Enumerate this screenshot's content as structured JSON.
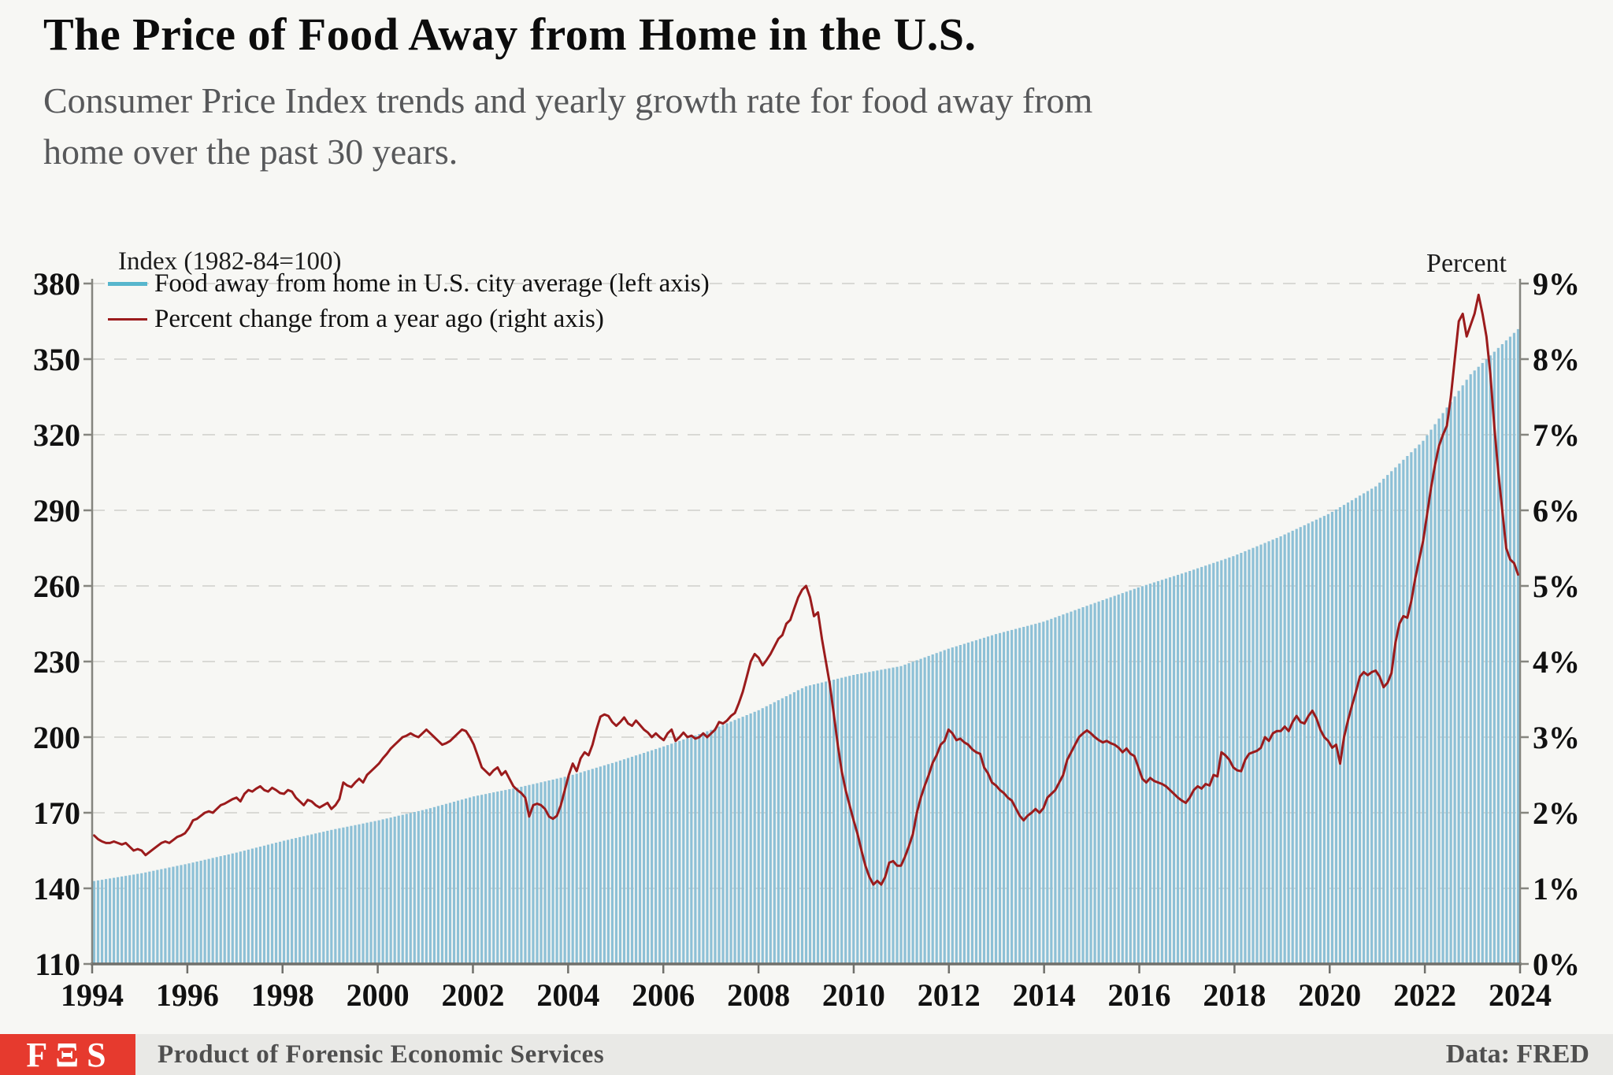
{
  "title": "The Price of Food Away from Home in the U.S.",
  "subtitle_line1": "Consumer Price Index trends and yearly growth rate for food away from",
  "subtitle_line2": "home over the past 30 years.",
  "axis_titles": {
    "left": "Index (1982-84=100)",
    "right": "Percent"
  },
  "legend": [
    {
      "label": "Food away from home in U.S. city average (left axis)",
      "color": "#57b6cd",
      "thickness": 5
    },
    {
      "label": "Percent change from a year ago (right axis)",
      "color": "#9b1b1c",
      "thickness": 3
    }
  ],
  "footer": {
    "logo": "FΞS",
    "product": "Product of Forensic Economic Services",
    "source": "Data: FRED"
  },
  "colors": {
    "background": "#f7f7f4",
    "bar": "#8dc0d6",
    "line": "#9b1b1c",
    "grid": "#d9d9d5",
    "axis": "#85857f",
    "baseline": "#70706b",
    "tick_text": "#111111"
  },
  "chart_data": {
    "type": "bar+line",
    "title": "The Price of Food Away from Home in the U.S.",
    "left_axis": {
      "label": "Index (1982-84=100)",
      "min": 110,
      "max": 380,
      "tick_step": 30,
      "ticks": [
        110,
        140,
        170,
        200,
        230,
        260,
        290,
        320,
        350,
        380
      ]
    },
    "right_axis": {
      "label": "Percent",
      "min": 0,
      "max": 9,
      "tick_step": 1,
      "ticks": [
        "0%",
        "1%",
        "2%",
        "3%",
        "4%",
        "5%",
        "6%",
        "7%",
        "8%",
        "9%"
      ]
    },
    "x_axis": {
      "start_year": 1994,
      "end_year": 2024,
      "tick_step": 2,
      "ticks": [
        "1994",
        "1996",
        "1998",
        "2000",
        "2002",
        "2004",
        "2006",
        "2008",
        "2010",
        "2012",
        "2014",
        "2016",
        "2018",
        "2020",
        "2022",
        "2024"
      ]
    },
    "grid": "horizontal-dashed",
    "legend_position": "top-left-inside",
    "bars": {
      "name": "Food away from home in U.S. city average",
      "axis": "left",
      "frequency": "monthly",
      "january_index_by_year": [
        142.9,
        146.0,
        149.9,
        154.2,
        158.9,
        163.2,
        167.0,
        171.4,
        176.5,
        180.3,
        184.6,
        190.2,
        196.3,
        202.9,
        210.7,
        220.2,
        224.7,
        228.2,
        235.1,
        240.9,
        245.8,
        252.7,
        259.4,
        265.4,
        271.8,
        279.7,
        288.5,
        299.5,
        317.6,
        344.0,
        361.9
      ]
    },
    "line": {
      "name": "Percent change from a year ago",
      "axis": "right",
      "frequency": "monthly",
      "start": "1994-01",
      "end": "2024-01",
      "values": [
        1.7,
        1.65,
        1.62,
        1.6,
        1.6,
        1.62,
        1.6,
        1.58,
        1.6,
        1.55,
        1.5,
        1.52,
        1.5,
        1.44,
        1.48,
        1.52,
        1.56,
        1.6,
        1.62,
        1.6,
        1.64,
        1.68,
        1.7,
        1.73,
        1.8,
        1.9,
        1.92,
        1.96,
        2.0,
        2.02,
        2.0,
        2.05,
        2.1,
        2.12,
        2.15,
        2.18,
        2.2,
        2.15,
        2.25,
        2.3,
        2.28,
        2.32,
        2.35,
        2.3,
        2.28,
        2.33,
        2.3,
        2.26,
        2.25,
        2.3,
        2.28,
        2.2,
        2.15,
        2.1,
        2.17,
        2.15,
        2.1,
        2.07,
        2.1,
        2.13,
        2.05,
        2.1,
        2.18,
        2.4,
        2.36,
        2.34,
        2.4,
        2.45,
        2.4,
        2.5,
        2.55,
        2.6,
        2.65,
        2.72,
        2.78,
        2.85,
        2.9,
        2.95,
        3.0,
        3.02,
        3.05,
        3.02,
        3.0,
        3.05,
        3.1,
        3.05,
        3.0,
        2.95,
        2.9,
        2.92,
        2.95,
        3.0,
        3.05,
        3.1,
        3.08,
        3.0,
        2.9,
        2.75,
        2.6,
        2.55,
        2.5,
        2.56,
        2.6,
        2.5,
        2.55,
        2.45,
        2.35,
        2.3,
        2.26,
        2.2,
        1.95,
        2.1,
        2.12,
        2.1,
        2.05,
        1.95,
        1.92,
        1.96,
        2.1,
        2.3,
        2.5,
        2.65,
        2.55,
        2.72,
        2.8,
        2.76,
        2.9,
        3.1,
        3.27,
        3.3,
        3.28,
        3.2,
        3.15,
        3.2,
        3.26,
        3.18,
        3.15,
        3.22,
        3.16,
        3.1,
        3.06,
        3.0,
        3.05,
        3.0,
        2.96,
        3.05,
        3.1,
        2.95,
        3.0,
        3.06,
        3.0,
        3.02,
        2.98,
        3.0,
        3.05,
        3.0,
        3.05,
        3.1,
        3.2,
        3.18,
        3.22,
        3.28,
        3.32,
        3.45,
        3.6,
        3.8,
        4.0,
        4.1,
        4.05,
        3.95,
        4.02,
        4.1,
        4.2,
        4.3,
        4.35,
        4.5,
        4.55,
        4.7,
        4.85,
        4.95,
        5.0,
        4.85,
        4.6,
        4.65,
        4.3,
        4.0,
        3.7,
        3.3,
        2.9,
        2.55,
        2.3,
        2.1,
        1.9,
        1.72,
        1.5,
        1.3,
        1.15,
        1.05,
        1.1,
        1.05,
        1.15,
        1.34,
        1.36,
        1.3,
        1.3,
        1.42,
        1.56,
        1.72,
        2.0,
        2.2,
        2.36,
        2.5,
        2.66,
        2.76,
        2.9,
        2.95,
        3.1,
        3.05,
        2.96,
        2.98,
        2.93,
        2.9,
        2.84,
        2.8,
        2.78,
        2.6,
        2.52,
        2.4,
        2.36,
        2.3,
        2.26,
        2.2,
        2.16,
        2.06,
        1.96,
        1.9,
        1.96,
        2.0,
        2.05,
        2.0,
        2.06,
        2.2,
        2.25,
        2.3,
        2.4,
        2.5,
        2.7,
        2.8,
        2.9,
        3.0,
        3.05,
        3.09,
        3.05,
        3.0,
        2.96,
        2.93,
        2.95,
        2.92,
        2.9,
        2.86,
        2.8,
        2.85,
        2.78,
        2.75,
        2.6,
        2.45,
        2.4,
        2.46,
        2.42,
        2.4,
        2.38,
        2.35,
        2.3,
        2.25,
        2.2,
        2.16,
        2.13,
        2.2,
        2.3,
        2.35,
        2.32,
        2.38,
        2.36,
        2.5,
        2.48,
        2.8,
        2.76,
        2.7,
        2.6,
        2.56,
        2.55,
        2.7,
        2.78,
        2.8,
        2.82,
        2.86,
        3.0,
        2.95,
        3.05,
        3.08,
        3.08,
        3.14,
        3.08,
        3.2,
        3.28,
        3.2,
        3.18,
        3.28,
        3.35,
        3.25,
        3.1,
        3.0,
        2.95,
        2.86,
        2.9,
        2.65,
        3.0,
        3.22,
        3.42,
        3.6,
        3.8,
        3.86,
        3.82,
        3.86,
        3.88,
        3.8,
        3.66,
        3.72,
        3.85,
        4.25,
        4.5,
        4.6,
        4.58,
        4.8,
        5.1,
        5.35,
        5.6,
        5.95,
        6.3,
        6.6,
        6.85,
        7.0,
        7.12,
        7.5,
        8.0,
        8.5,
        8.6,
        8.3,
        8.45,
        8.6,
        8.85,
        8.6,
        8.3,
        7.8,
        7.1,
        6.5,
        6.0,
        5.5,
        5.35,
        5.3,
        5.15
      ]
    }
  }
}
